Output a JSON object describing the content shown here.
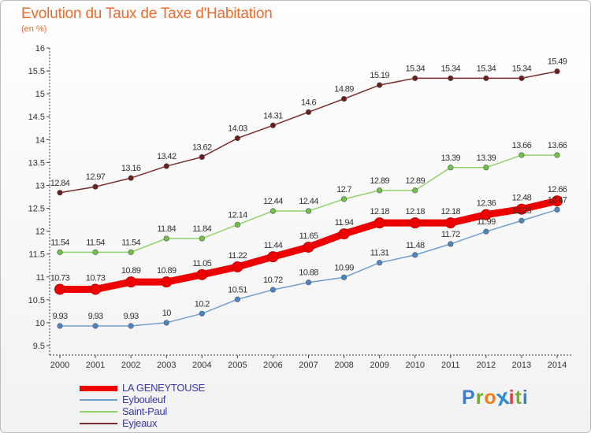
{
  "title": "Evolution du Taux de Taxe d'Habitation",
  "unit": "(en %)",
  "logo": {
    "text": "Proxiti",
    "letters": [
      "P",
      "r",
      "o",
      "x",
      "i",
      "t",
      "i"
    ],
    "colors": [
      "#3d7fcf",
      "#6fae2e",
      "#f07c1a",
      "#2c89d5",
      "#e23d3d",
      "#7aa83a",
      "#3d7fcf"
    ]
  },
  "chart_data": {
    "type": "line",
    "title": "Evolution du Taux de Taxe d'Habitation",
    "ylabel": "(en %)",
    "xlabel": "",
    "x": [
      2000,
      2001,
      2002,
      2003,
      2004,
      2005,
      2006,
      2007,
      2008,
      2009,
      2010,
      2011,
      2012,
      2013,
      2014
    ],
    "x_tick_labels": [
      "2000",
      "2001",
      "2002",
      "2003",
      "2004",
      "2005",
      "2006",
      "2007",
      "2008",
      "2009",
      "2010",
      "2011",
      "2012",
      "2013",
      "2014"
    ],
    "ylim": [
      9.5,
      16
    ],
    "y_ticks": [
      9.5,
      10,
      10.5,
      11,
      11.5,
      12,
      12.5,
      13,
      13.5,
      14,
      14.5,
      15,
      15.5,
      16
    ],
    "y_tick_labels": [
      "9.5",
      "10",
      "10.5",
      "11",
      "11.5",
      "12",
      "12.5",
      "13",
      "13.5",
      "14",
      "14.5",
      "15",
      "15.5",
      "16"
    ],
    "grid": false,
    "legend_position": "bottom-left",
    "series": [
      {
        "name": "Eyjeaux",
        "color": "#7a2b2b",
        "marker_color": "#6b1e1e",
        "values": [
          12.84,
          12.97,
          13.16,
          13.42,
          13.62,
          14.03,
          14.31,
          14.6,
          14.89,
          15.19,
          15.34,
          15.34,
          15.34,
          15.34,
          15.49
        ],
        "labels": [
          "12.84",
          "12.97",
          "13.16",
          "13.42",
          "13.62",
          "14.03",
          "14.31",
          "14.6",
          "14.89",
          "15.19",
          "15.34",
          "15.34",
          "15.34",
          "15.34",
          "15.49"
        ]
      },
      {
        "name": "Saint-Paul",
        "color": "#8fd36a",
        "marker_color": "#72c24a",
        "values": [
          11.54,
          11.54,
          11.54,
          11.84,
          11.84,
          12.14,
          12.44,
          12.44,
          12.7,
          12.89,
          12.89,
          13.39,
          13.39,
          13.66,
          13.66
        ],
        "labels": [
          "11.54",
          "11.54",
          "11.54",
          "11.84",
          "11.84",
          "12.14",
          "12.44",
          "12.44",
          "12.7",
          "12.89",
          "12.89",
          "13.39",
          "13.39",
          "13.66",
          "13.66"
        ]
      },
      {
        "name": "Eybouleuf",
        "color": "#6f9fcf",
        "marker_color": "#4a86c4",
        "values": [
          9.93,
          9.93,
          9.93,
          10,
          10.2,
          10.51,
          10.72,
          10.88,
          10.99,
          11.31,
          11.48,
          11.72,
          11.99,
          12.23,
          12.47
        ],
        "labels": [
          "9.93",
          "9.93",
          "9.93",
          "10",
          "10.2",
          "10.51",
          "10.72",
          "10.88",
          "10.99",
          "11.31",
          "11.48",
          "11.72",
          "11.99",
          "12.23",
          "12.47"
        ]
      },
      {
        "name": "LA GENEYTOUSE",
        "color": "#ee0000",
        "marker_color": "#ee0000",
        "bold": true,
        "values": [
          10.73,
          10.73,
          10.89,
          10.89,
          11.05,
          11.22,
          11.44,
          11.65,
          11.94,
          12.18,
          12.18,
          12.18,
          12.36,
          12.48,
          12.66
        ],
        "labels": [
          "10.73",
          "10.73",
          "10.89",
          "10.89",
          "11.05",
          "11.22",
          "11.44",
          "11.65",
          "11.94",
          "12.18",
          "12.18",
          "12.18",
          "12.36",
          "12.48",
          "12.66"
        ]
      }
    ],
    "legend": [
      {
        "name": "LA GENEYTOUSE",
        "color": "#ee0000",
        "bold": true
      },
      {
        "name": "Eybouleuf",
        "color": "#6f9fcf"
      },
      {
        "name": "Saint-Paul",
        "color": "#8fd36a"
      },
      {
        "name": "Eyjeaux",
        "color": "#7a2b2b"
      }
    ]
  }
}
